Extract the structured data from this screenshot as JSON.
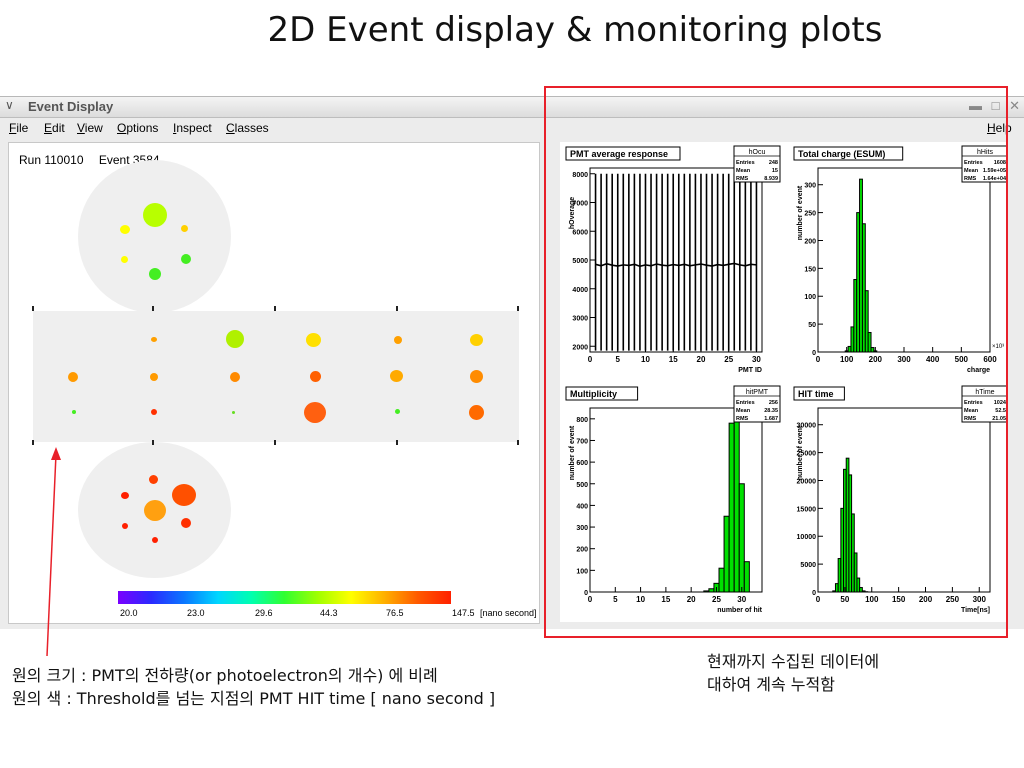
{
  "slide": {
    "title": "2D Event display & monitoring plots",
    "note_left_1": "원의 크기 : PMT의 전하량(or photoelectron의 개수) 에 비례",
    "note_left_2": "원의 색 : Threshold를 넘는 지점의 PMT HIT time [ nano second ]",
    "note_right_1": "현재까지 수집된 데이터에",
    "note_right_2": "대하여 계속 누적함"
  },
  "window": {
    "title": "Event Display",
    "menu": [
      "File",
      "Edit",
      "View",
      "Options",
      "Inspect",
      "Classes"
    ],
    "help": "Help"
  },
  "event": {
    "run_label": "Run 110010",
    "event_label": "Event 3584"
  },
  "colorbar": {
    "labels": [
      "20.0",
      "23.0",
      "29.6",
      "44.3",
      "76.5",
      "147.5"
    ],
    "unit": "[nano second]"
  },
  "colors": {
    "accent_red": "#e8202a",
    "hist_fill": "#00e000"
  },
  "plots": {
    "pmt_avg": {
      "title": "PMT average response",
      "stats_name": "hOcu",
      "stats": [
        [
          "Entries",
          "248"
        ],
        [
          "Mean",
          "15"
        ],
        [
          "RMS",
          "8.939"
        ]
      ],
      "xlabel": "PMT ID",
      "ylabel": "hOverage",
      "xticks": [
        "0",
        "5",
        "10",
        "15",
        "20",
        "25",
        "30"
      ],
      "yticks": [
        "2000",
        "3000",
        "4000",
        "5000",
        "6000",
        "7000",
        "8000"
      ]
    },
    "esum": {
      "title": "Total charge (ESUM)",
      "stats_name": "hHits",
      "stats": [
        [
          "Entries",
          "1608"
        ],
        [
          "Mean",
          "1.59e+05"
        ],
        [
          "RMS",
          "1.64e+04"
        ]
      ],
      "xlabel": "charge",
      "ylabel": "number of event",
      "xticks": [
        "0",
        "100",
        "200",
        "300",
        "400",
        "500",
        "600"
      ],
      "yticks": [
        "0",
        "50",
        "100",
        "150",
        "200",
        "250",
        "300"
      ],
      "exp": "×10³"
    },
    "mult": {
      "title": "Multiplicity",
      "stats_name": "hitPMT",
      "stats": [
        [
          "Entries",
          "256"
        ],
        [
          "Mean",
          "28.35"
        ],
        [
          "RMS",
          "1.687"
        ]
      ],
      "xlabel": "number of hit",
      "ylabel": "number of event",
      "xticks": [
        "0",
        "5",
        "10",
        "15",
        "20",
        "25",
        "30"
      ],
      "yticks": [
        "0",
        "100",
        "200",
        "300",
        "400",
        "500",
        "600",
        "700",
        "800"
      ]
    },
    "hittime": {
      "title": "HIT time",
      "stats_name": "hTime",
      "stats": [
        [
          "Entries",
          "1024"
        ],
        [
          "Mean",
          "52.5"
        ],
        [
          "RMS",
          "21.05"
        ]
      ],
      "xlabel": "Time[ns]",
      "ylabel": "number of event",
      "xticks": [
        "0",
        "50",
        "100",
        "150",
        "200",
        "250",
        "300"
      ],
      "yticks": [
        "0",
        "5000",
        "10000",
        "15000",
        "20000",
        "25000",
        "30000"
      ]
    }
  },
  "chart_data": [
    {
      "type": "line",
      "x": [
        1,
        2,
        3,
        4,
        5,
        6,
        7,
        8,
        9,
        10,
        11,
        12,
        13,
        14,
        15,
        16,
        17,
        18,
        19,
        20,
        21,
        22,
        23,
        24,
        25,
        26,
        27,
        28,
        29,
        30
      ],
      "values": [
        4850,
        4800,
        4870,
        4820,
        4790,
        4830,
        4810,
        4850,
        4780,
        4830,
        4800,
        4860,
        4820,
        4800,
        4840,
        4810,
        4850,
        4800,
        4830,
        4860,
        4820,
        4790,
        4840,
        4810,
        4850,
        4880,
        4830,
        4800,
        4850,
        4830
      ],
      "xlim": [
        0,
        31
      ],
      "ylim": [
        1800,
        8200
      ]
    },
    {
      "type": "bar",
      "x": [
        100,
        110,
        120,
        130,
        140,
        150,
        160,
        170,
        180,
        190,
        200
      ],
      "values": [
        2,
        10,
        45,
        130,
        250,
        310,
        230,
        110,
        35,
        8,
        2
      ],
      "xlim": [
        0,
        600
      ],
      "ylim": [
        0,
        330
      ]
    },
    {
      "type": "bar",
      "x": [
        23,
        24,
        25,
        26,
        27,
        28,
        29,
        30,
        31
      ],
      "values": [
        5,
        15,
        40,
        110,
        350,
        780,
        830,
        500,
        140
      ],
      "xlim": [
        0,
        34
      ],
      "ylim": [
        0,
        850
      ]
    },
    {
      "type": "bar",
      "x": [
        30,
        35,
        40,
        45,
        50,
        55,
        60,
        65,
        70,
        75,
        80,
        85,
        90
      ],
      "values": [
        200,
        1500,
        6000,
        15000,
        22000,
        24000,
        21000,
        14000,
        7000,
        2500,
        800,
        200,
        50
      ],
      "xlim": [
        0,
        320
      ],
      "ylim": [
        0,
        33000
      ]
    }
  ]
}
